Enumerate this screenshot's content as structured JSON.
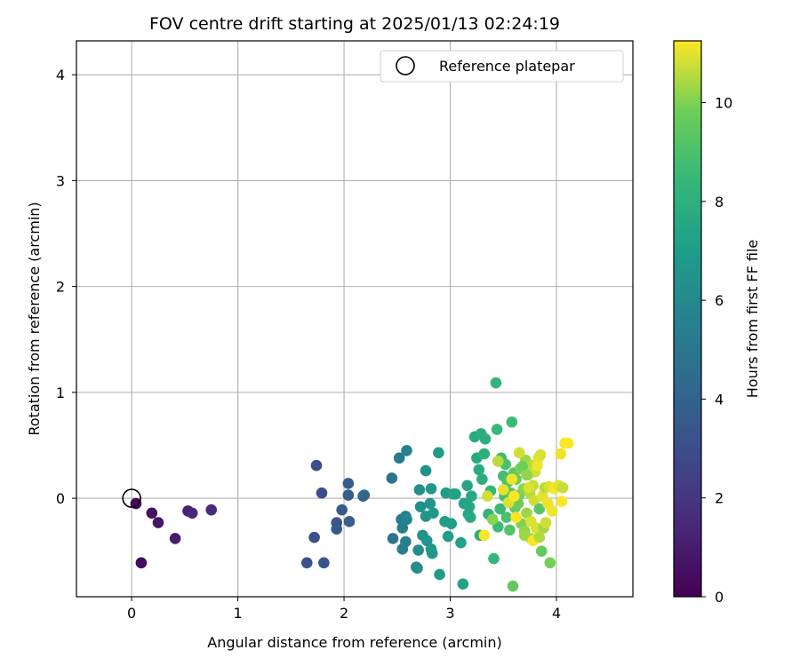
{
  "chart_data": {
    "type": "scatter",
    "title": "FOV centre drift starting at 2025/01/13 02:24:19",
    "xlabel": "Angular distance from reference (arcmin)",
    "ylabel": "Rotation from reference (arcmin)",
    "xlim": [
      -0.52,
      4.72
    ],
    "ylim": [
      -0.93,
      4.32
    ],
    "xticks": [
      "0",
      "1",
      "2",
      "3",
      "4"
    ],
    "yticks": [
      "0",
      "1",
      "2",
      "3",
      "4"
    ],
    "grid": true,
    "legend": {
      "placement": "top-right",
      "entries": [
        "Reference platepar"
      ]
    },
    "reference_point": {
      "name": "Reference platepar",
      "x": 0,
      "y": 0
    },
    "colorbar": {
      "label": "Hours from first FF file",
      "colormap": "viridis",
      "range": [
        0,
        11.25
      ],
      "ticks": [
        "0",
        "2",
        "4",
        "6",
        "8",
        "10"
      ]
    },
    "points": [
      [
        0.04,
        -0.05,
        0.1
      ],
      [
        0.09,
        -0.61,
        0.3
      ],
      [
        0.19,
        -0.14,
        0.6
      ],
      [
        0.25,
        -0.23,
        0.8
      ],
      [
        0.41,
        -0.38,
        1.0
      ],
      [
        0.53,
        -0.12,
        1.2
      ],
      [
        0.57,
        -0.14,
        1.4
      ],
      [
        0.75,
        -0.11,
        1.6
      ],
      [
        1.65,
        -0.61,
        3.2
      ],
      [
        1.72,
        -0.37,
        3.1
      ],
      [
        1.74,
        0.31,
        3.0
      ],
      [
        1.79,
        0.05,
        3.0
      ],
      [
        1.81,
        -0.61,
        3.3
      ],
      [
        1.93,
        -0.23,
        3.4
      ],
      [
        1.93,
        -0.29,
        3.5
      ],
      [
        1.98,
        -0.11,
        3.6
      ],
      [
        2.04,
        0.14,
        3.6
      ],
      [
        2.04,
        0.03,
        3.7
      ],
      [
        2.05,
        -0.22,
        3.8
      ],
      [
        2.18,
        0.02,
        4.0
      ],
      [
        2.19,
        0.03,
        4.1
      ],
      [
        2.45,
        0.19,
        5.0
      ],
      [
        2.46,
        -0.38,
        5.0
      ],
      [
        2.52,
        0.38,
        5.1
      ],
      [
        2.54,
        -0.2,
        5.2
      ],
      [
        2.55,
        -0.28,
        5.3
      ],
      [
        2.55,
        -0.48,
        5.4
      ],
      [
        2.58,
        -0.17,
        5.4
      ],
      [
        2.58,
        -0.41,
        5.5
      ],
      [
        2.59,
        0.45,
        5.5
      ],
      [
        2.59,
        -0.2,
        5.6
      ],
      [
        2.68,
        -0.65,
        6.1
      ],
      [
        2.69,
        -0.66,
        6.2
      ],
      [
        2.7,
        -0.49,
        6.2
      ],
      [
        2.71,
        0.08,
        6.3
      ],
      [
        2.72,
        -0.08,
        6.3
      ],
      [
        2.74,
        -0.35,
        6.4
      ],
      [
        2.77,
        -0.17,
        6.5
      ],
      [
        2.77,
        0.26,
        6.5
      ],
      [
        2.78,
        -0.4,
        6.6
      ],
      [
        2.81,
        -0.05,
        6.6
      ],
      [
        2.82,
        0.09,
        6.7
      ],
      [
        2.82,
        -0.48,
        6.7
      ],
      [
        2.83,
        -0.52,
        6.8
      ],
      [
        2.84,
        -0.14,
        6.8
      ],
      [
        2.89,
        0.43,
        6.9
      ],
      [
        2.9,
        -0.72,
        6.9
      ],
      [
        2.95,
        -0.22,
        7.0
      ],
      [
        2.96,
        0.05,
        7.0
      ],
      [
        2.98,
        -0.36,
        7.1
      ],
      [
        3.01,
        -0.24,
        7.1
      ],
      [
        3.03,
        0.04,
        7.2
      ],
      [
        3.05,
        0.04,
        7.2
      ],
      [
        3.1,
        -0.42,
        7.3
      ],
      [
        3.12,
        -0.81,
        7.3
      ],
      [
        3.13,
        -0.05,
        7.4
      ],
      [
        3.16,
        0.12,
        7.4
      ],
      [
        3.17,
        -0.15,
        7.5
      ],
      [
        3.18,
        -0.08,
        7.5
      ],
      [
        3.19,
        -0.18,
        7.6
      ],
      [
        3.2,
        0.02,
        7.6
      ],
      [
        3.23,
        0.58,
        7.7
      ],
      [
        3.25,
        0.38,
        7.7
      ],
      [
        3.27,
        0.27,
        7.8
      ],
      [
        3.28,
        -0.35,
        7.8
      ],
      [
        3.29,
        0.61,
        7.9
      ],
      [
        3.3,
        0.18,
        7.9
      ],
      [
        3.32,
        0.42,
        8.0
      ],
      [
        3.33,
        0.56,
        8.0
      ],
      [
        3.36,
        -0.15,
        8.2
      ],
      [
        3.38,
        0.07,
        8.3
      ],
      [
        3.41,
        -0.57,
        8.4
      ],
      [
        3.43,
        1.09,
        8.4
      ],
      [
        3.44,
        0.65,
        8.5
      ],
      [
        3.45,
        -0.27,
        8.6
      ],
      [
        3.47,
        -0.1,
        8.6
      ],
      [
        3.48,
        0.38,
        8.7
      ],
      [
        3.5,
        0.21,
        8.8
      ],
      [
        3.51,
        0.02,
        8.9
      ],
      [
        3.52,
        0.32,
        9.0
      ],
      [
        3.53,
        -0.18,
        9.0
      ],
      [
        3.54,
        0.15,
        9.1
      ],
      [
        3.56,
        -0.3,
        9.2
      ],
      [
        3.57,
        0.05,
        9.3
      ],
      [
        3.58,
        0.72,
        8.6
      ],
      [
        3.59,
        -0.83,
        9.5
      ],
      [
        3.6,
        0.24,
        9.4
      ],
      [
        3.61,
        -0.09,
        9.6
      ],
      [
        3.62,
        0.18,
        9.7
      ],
      [
        3.64,
        -0.05,
        9.8
      ],
      [
        3.65,
        0.03,
        9.9
      ],
      [
        3.66,
        0.28,
        10.0
      ],
      [
        3.67,
        -0.24,
        10.0
      ],
      [
        3.69,
        0.09,
        10.1
      ],
      [
        3.7,
        -0.31,
        10.2
      ],
      [
        3.71,
        0.36,
        10.3
      ],
      [
        3.72,
        -0.14,
        10.3
      ],
      [
        3.73,
        0.22,
        10.4
      ],
      [
        3.75,
        0.05,
        10.5
      ],
      [
        3.76,
        -0.38,
        10.5
      ],
      [
        3.77,
        0.31,
        10.6
      ],
      [
        3.78,
        0.12,
        10.7
      ],
      [
        3.79,
        -0.02,
        10.8
      ],
      [
        3.8,
        0.25,
        10.8
      ],
      [
        3.81,
        -0.28,
        10.9
      ],
      [
        3.83,
        0.38,
        11.0
      ],
      [
        3.84,
        -0.1,
        9.3
      ],
      [
        3.85,
        0.41,
        10.9
      ],
      [
        3.86,
        -0.5,
        9.6
      ],
      [
        3.87,
        0.02,
        11.0
      ],
      [
        3.88,
        -0.28,
        10.4
      ],
      [
        3.89,
        0.1,
        10.6
      ],
      [
        3.9,
        -0.23,
        10.8
      ],
      [
        3.92,
        -0.05,
        11.1
      ],
      [
        3.93,
        0.11,
        10.9
      ],
      [
        3.94,
        -0.61,
        9.9
      ],
      [
        3.96,
        -0.12,
        11.1
      ],
      [
        3.98,
        0.09,
        11.2
      ],
      [
        4.02,
        0.12,
        11.0
      ],
      [
        4.04,
        0.42,
        11.1
      ],
      [
        4.05,
        -0.03,
        11.2
      ],
      [
        4.06,
        0.1,
        10.7
      ],
      [
        4.08,
        0.52,
        11.2
      ],
      [
        4.11,
        0.52,
        11.3
      ],
      [
        3.32,
        -0.35,
        11.2
      ],
      [
        3.35,
        0.02,
        10.8
      ],
      [
        3.4,
        -0.2,
        10.1
      ],
      [
        3.45,
        0.35,
        10.6
      ],
      [
        3.5,
        0.08,
        11.0
      ],
      [
        3.55,
        -0.04,
        10.9
      ],
      [
        3.58,
        0.18,
        11.1
      ],
      [
        3.62,
        -0.18,
        11.2
      ],
      [
        3.65,
        0.43,
        10.8
      ],
      [
        3.7,
        -0.35,
        10.3
      ],
      [
        3.74,
        0.1,
        10.9
      ],
      [
        3.78,
        -0.4,
        11.2
      ],
      [
        3.82,
        0.31,
        11.1
      ],
      [
        3.84,
        -0.37,
        10.5
      ],
      [
        3.6,
        0.02,
        11.2
      ],
      [
        3.68,
        0.3,
        9.8
      ],
      [
        3.72,
        0.22,
        10.2
      ],
      [
        3.76,
        -0.22,
        10.9
      ]
    ]
  }
}
